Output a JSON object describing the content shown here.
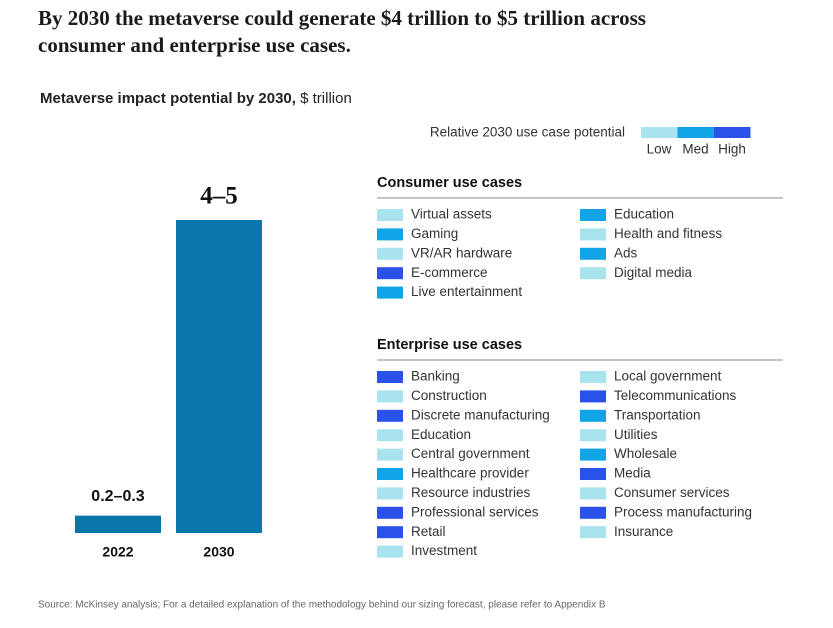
{
  "headline": "By 2030 the metaverse could generate $4 trillion to $5 trillion across consumer and enterprise use cases.",
  "chart_data": {
    "type": "bar",
    "title": "Metaverse impact potential by 2030,",
    "unit": "$ trillion",
    "categories": [
      "2022",
      "2030"
    ],
    "values": [
      0.25,
      4.5
    ],
    "value_labels": [
      "0.2–0.3",
      "4–5"
    ],
    "color": "#0a77ab",
    "ylim": [
      0,
      4.5
    ]
  },
  "legend": {
    "title": "Relative 2030 use case potential",
    "levels": [
      {
        "label": "Low",
        "color": "#a9e3ee"
      },
      {
        "label": "Med",
        "color": "#12a5e6"
      },
      {
        "label": "High",
        "color": "#2a52e8"
      }
    ]
  },
  "groups": [
    {
      "title": "Consumer use cases",
      "columns": [
        [
          {
            "label": "Virtual assets",
            "color": "#a9e3ee"
          },
          {
            "label": "Gaming",
            "color": "#12a5e6"
          },
          {
            "label": "VR/AR hardware",
            "color": "#a9e3ee"
          },
          {
            "label": "E-commerce",
            "color": "#2a52e8"
          },
          {
            "label": "Live entertainment",
            "color": "#12a5e6"
          }
        ],
        [
          {
            "label": "Education",
            "color": "#12a5e6"
          },
          {
            "label": "Health and fitness",
            "color": "#a9e3ee"
          },
          {
            "label": "Ads",
            "color": "#12a5e6"
          },
          {
            "label": "Digital media",
            "color": "#a9e3ee"
          }
        ]
      ]
    },
    {
      "title": "Enterprise use cases",
      "columns": [
        [
          {
            "label": "Banking",
            "color": "#2a52e8"
          },
          {
            "label": "Construction",
            "color": "#a9e3ee"
          },
          {
            "label": "Discrete manufacturing",
            "color": "#2a52e8"
          },
          {
            "label": "Education",
            "color": "#a9e3ee"
          },
          {
            "label": "Central government",
            "color": "#a9e3ee"
          },
          {
            "label": "Healthcare provider",
            "color": "#12a5e6"
          },
          {
            "label": "Resource industries",
            "color": "#a9e3ee"
          },
          {
            "label": "Professional services",
            "color": "#2a52e8"
          },
          {
            "label": "Retail",
            "color": "#2a52e8"
          },
          {
            "label": "Investment",
            "color": "#a9e3ee"
          }
        ],
        [
          {
            "label": "Local government",
            "color": "#a9e3ee"
          },
          {
            "label": "Telecommunications",
            "color": "#2a52e8"
          },
          {
            "label": "Transportation",
            "color": "#12a5e6"
          },
          {
            "label": "Utilities",
            "color": "#a9e3ee"
          },
          {
            "label": "Wholesale",
            "color": "#12a5e6"
          },
          {
            "label": "Media",
            "color": "#2a52e8"
          },
          {
            "label": "Consumer services",
            "color": "#a9e3ee"
          },
          {
            "label": "Process manufacturing",
            "color": "#2a52e8"
          },
          {
            "label": "Insurance",
            "color": "#a9e3ee"
          }
        ]
      ]
    }
  ],
  "source": "Source: McKinsey analysis; For a detailed explanation of the methodology behind our sizing forecast, please refer to Appendix B"
}
